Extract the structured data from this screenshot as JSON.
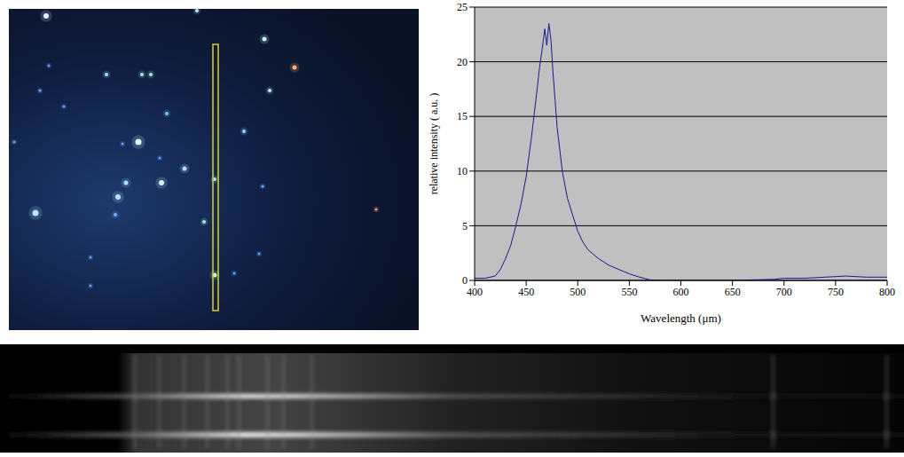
{
  "chart_data": {
    "type": "line",
    "x_label": "Wavelength (μm)",
    "y_label": "relative intensity ( a.u. )",
    "x": [
      400,
      410,
      420,
      425,
      430,
      435,
      440,
      445,
      450,
      455,
      460,
      463,
      466,
      468,
      470,
      472,
      474,
      476,
      478,
      480,
      485,
      490,
      495,
      500,
      505,
      510,
      520,
      530,
      540,
      550,
      560,
      570,
      580,
      600,
      650,
      690,
      700,
      720,
      740,
      760,
      780,
      800
    ],
    "values": [
      0.2,
      0.2,
      0.4,
      1,
      2,
      3.2,
      5,
      7,
      9.5,
      13,
      17,
      19.5,
      21.5,
      23,
      21.5,
      23.5,
      22,
      19,
      16.5,
      14,
      10,
      7.5,
      6,
      4.5,
      3.5,
      2.8,
      2,
      1.4,
      1,
      0.6,
      0.3,
      0.05,
      0,
      0,
      0,
      0.1,
      0.2,
      0.2,
      0.3,
      0.4,
      0.3,
      0.3
    ],
    "color": "#1a1a8c",
    "xlim": [
      400,
      800
    ],
    "xticks": [
      400,
      450,
      500,
      550,
      600,
      650,
      700,
      750,
      800
    ],
    "ylim": [
      0,
      25
    ],
    "yticks": [
      0,
      5,
      10,
      15,
      20,
      25
    ],
    "grid": true
  }
}
